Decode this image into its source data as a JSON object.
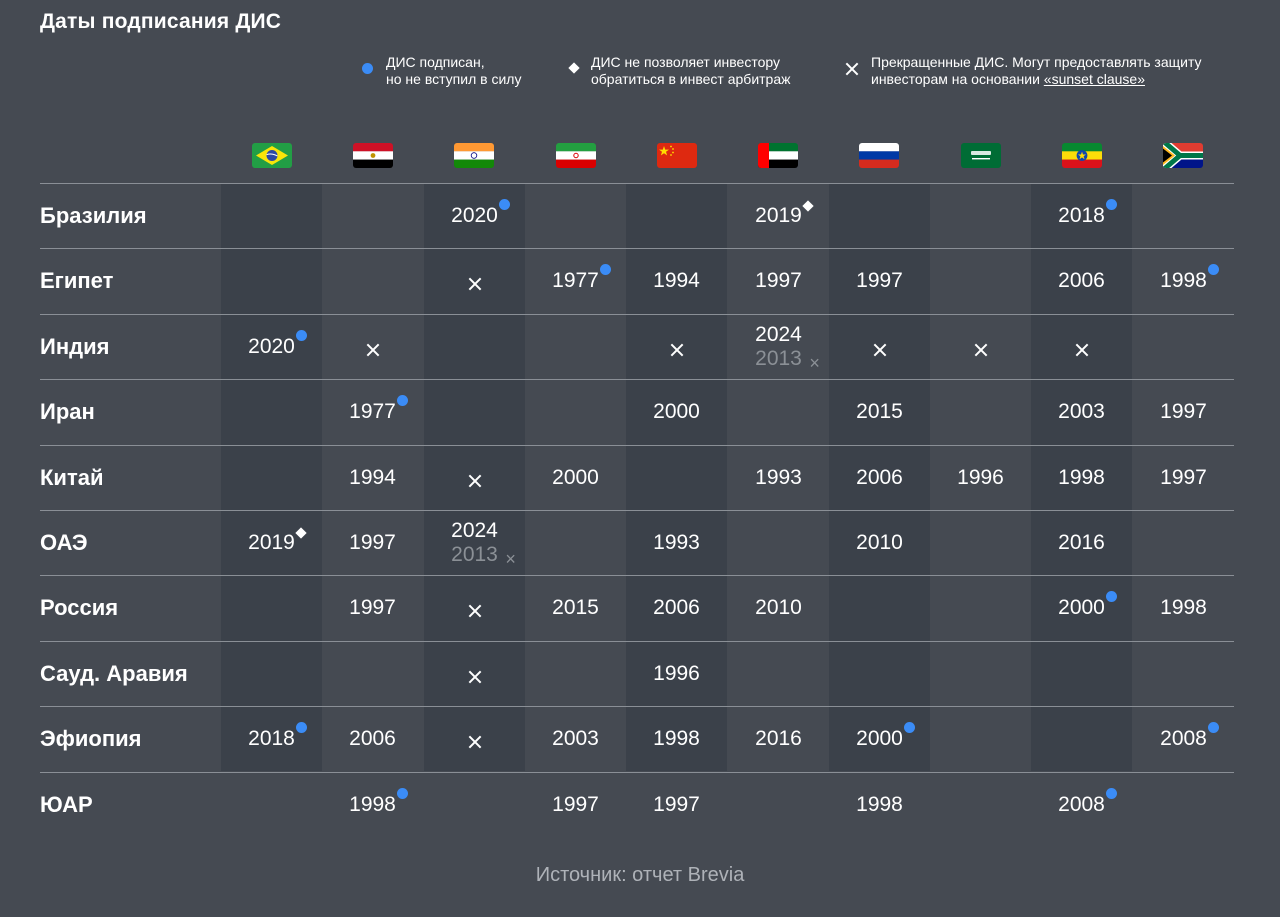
{
  "title": "Даты подписания ДИС",
  "legend": [
    {
      "marker": "dot",
      "lines": [
        "ДИС подписан,",
        "но не вступил в силу"
      ]
    },
    {
      "marker": "diamond",
      "lines": [
        "ДИС не позволяет инвестору",
        "обратиться в инвест арбитраж"
      ]
    },
    {
      "marker": "cross",
      "lines": [
        "Прекращенные ДИС. Могут предоставлять защиту",
        "инвесторам на основании"
      ],
      "link": "«sunset clause»"
    }
  ],
  "colors": {
    "background": "#454a52",
    "dot": "#3b8cf6",
    "shaded_column": "#3b414a"
  },
  "flags": [
    "brazil-flag",
    "egypt-flag",
    "india-flag",
    "iran-flag",
    "china-flag",
    "uae-flag",
    "russia-flag",
    "saudi-arabia-flag",
    "ethiopia-flag",
    "south-africa-flag"
  ],
  "source": "Источник: отчет Brevia",
  "chart_data": {
    "type": "table",
    "title": "Даты подписания ДИС",
    "columns": [
      "Бразилия",
      "Египет",
      "Индия",
      "Иран",
      "Китай",
      "ОАЭ",
      "Россия",
      "Сауд. Аравия",
      "Эфиопия",
      "ЮАР"
    ],
    "rows": [
      {
        "label": "Бразилия",
        "cells": [
          null,
          null,
          {
            "year": "2020",
            "marker": "dot"
          },
          null,
          null,
          {
            "year": "2019",
            "marker": "diamond"
          },
          null,
          null,
          {
            "year": "2018",
            "marker": "dot"
          },
          null
        ]
      },
      {
        "label": "Египет",
        "cells": [
          null,
          null,
          {
            "marker": "cross"
          },
          {
            "year": "1977",
            "marker": "dot"
          },
          {
            "year": "1994"
          },
          {
            "year": "1997"
          },
          {
            "year": "1997"
          },
          null,
          {
            "year": "2006"
          },
          {
            "year": "1998",
            "marker": "dot"
          }
        ]
      },
      {
        "label": "Индия",
        "cells": [
          {
            "year": "2020",
            "marker": "dot"
          },
          {
            "marker": "cross"
          },
          null,
          null,
          {
            "marker": "cross"
          },
          {
            "year": "2024",
            "old_year": "2013",
            "old_marker": "×"
          },
          {
            "marker": "cross"
          },
          {
            "marker": "cross"
          },
          {
            "marker": "cross"
          },
          null
        ]
      },
      {
        "label": "Иран",
        "cells": [
          null,
          {
            "year": "1977",
            "marker": "dot"
          },
          null,
          null,
          {
            "year": "2000"
          },
          null,
          {
            "year": "2015"
          },
          null,
          {
            "year": "2003"
          },
          {
            "year": "1997"
          }
        ]
      },
      {
        "label": "Китай",
        "cells": [
          null,
          {
            "year": "1994"
          },
          {
            "marker": "cross"
          },
          {
            "year": "2000"
          },
          null,
          {
            "year": "1993"
          },
          {
            "year": "2006"
          },
          {
            "year": "1996"
          },
          {
            "year": "1998"
          },
          {
            "year": "1997"
          }
        ]
      },
      {
        "label": "ОАЭ",
        "cells": [
          {
            "year": "2019",
            "marker": "diamond"
          },
          {
            "year": "1997"
          },
          {
            "year": "2024",
            "old_year": "2013",
            "old_marker": "×"
          },
          null,
          {
            "year": "1993"
          },
          null,
          {
            "year": "2010"
          },
          null,
          {
            "year": "2016"
          },
          null
        ]
      },
      {
        "label": "Россия",
        "cells": [
          null,
          {
            "year": "1997"
          },
          {
            "marker": "cross"
          },
          {
            "year": "2015"
          },
          {
            "year": "2006"
          },
          {
            "year": "2010"
          },
          null,
          null,
          {
            "year": "2000",
            "marker": "dot"
          },
          {
            "year": "1998"
          }
        ]
      },
      {
        "label": "Сауд. Аравия",
        "cells": [
          null,
          null,
          {
            "marker": "cross"
          },
          null,
          {
            "year": "1996"
          },
          null,
          null,
          null,
          null,
          null
        ]
      },
      {
        "label": "Эфиопия",
        "cells": [
          {
            "year": "2018",
            "marker": "dot"
          },
          {
            "year": "2006"
          },
          {
            "marker": "cross"
          },
          {
            "year": "2003"
          },
          {
            "year": "1998"
          },
          {
            "year": "2016"
          },
          {
            "year": "2000",
            "marker": "dot"
          },
          null,
          null,
          {
            "year": "2008",
            "marker": "dot"
          }
        ]
      },
      {
        "label": "ЮАР",
        "cells": [
          null,
          {
            "year": "1998",
            "marker": "dot"
          },
          null,
          {
            "year": "1997"
          },
          {
            "year": "1997"
          },
          null,
          {
            "year": "1998"
          },
          null,
          {
            "year": "2008",
            "marker": "dot"
          },
          null
        ]
      }
    ]
  }
}
